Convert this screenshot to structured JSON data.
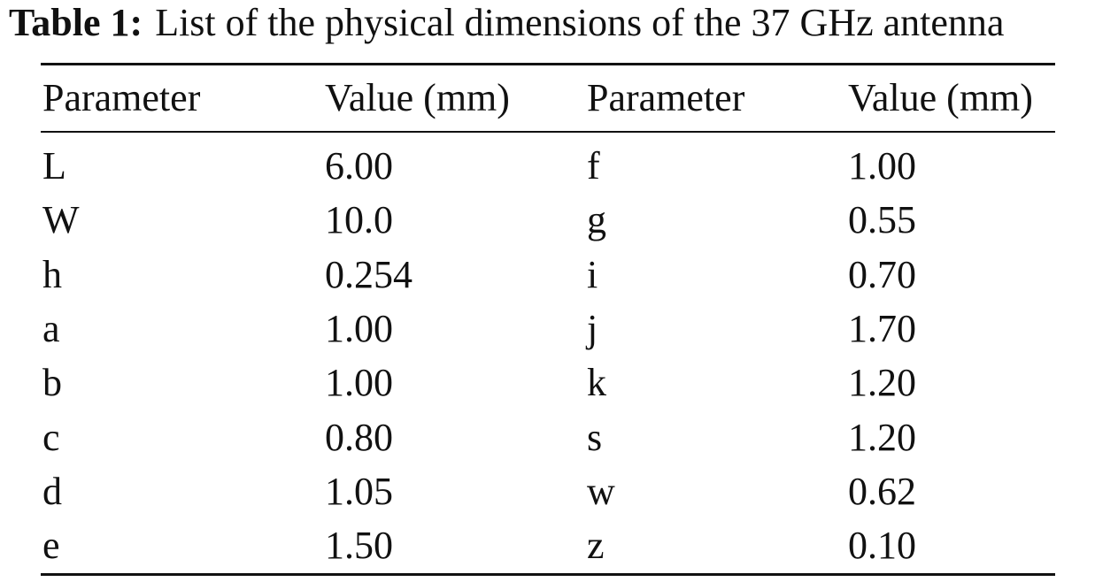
{
  "caption": {
    "label": "Table 1:",
    "text": "List of the physical dimensions of the 37 GHz antenna"
  },
  "table": {
    "header": [
      "Parameter",
      "Value (mm)",
      "Parameter",
      "Value (mm)"
    ],
    "rows": [
      [
        "L",
        "6.00",
        "f",
        "1.00"
      ],
      [
        "W",
        "10.0",
        "g",
        "0.55"
      ],
      [
        "h",
        "0.254",
        "i",
        "0.70"
      ],
      [
        "a",
        "1.00",
        "j",
        "1.70"
      ],
      [
        "b",
        "1.00",
        "k",
        "1.20"
      ],
      [
        "c",
        "0.80",
        "s",
        "1.20"
      ],
      [
        "d",
        "1.05",
        "w",
        "0.62"
      ],
      [
        "e",
        "1.50",
        "z",
        "0.10"
      ]
    ]
  }
}
